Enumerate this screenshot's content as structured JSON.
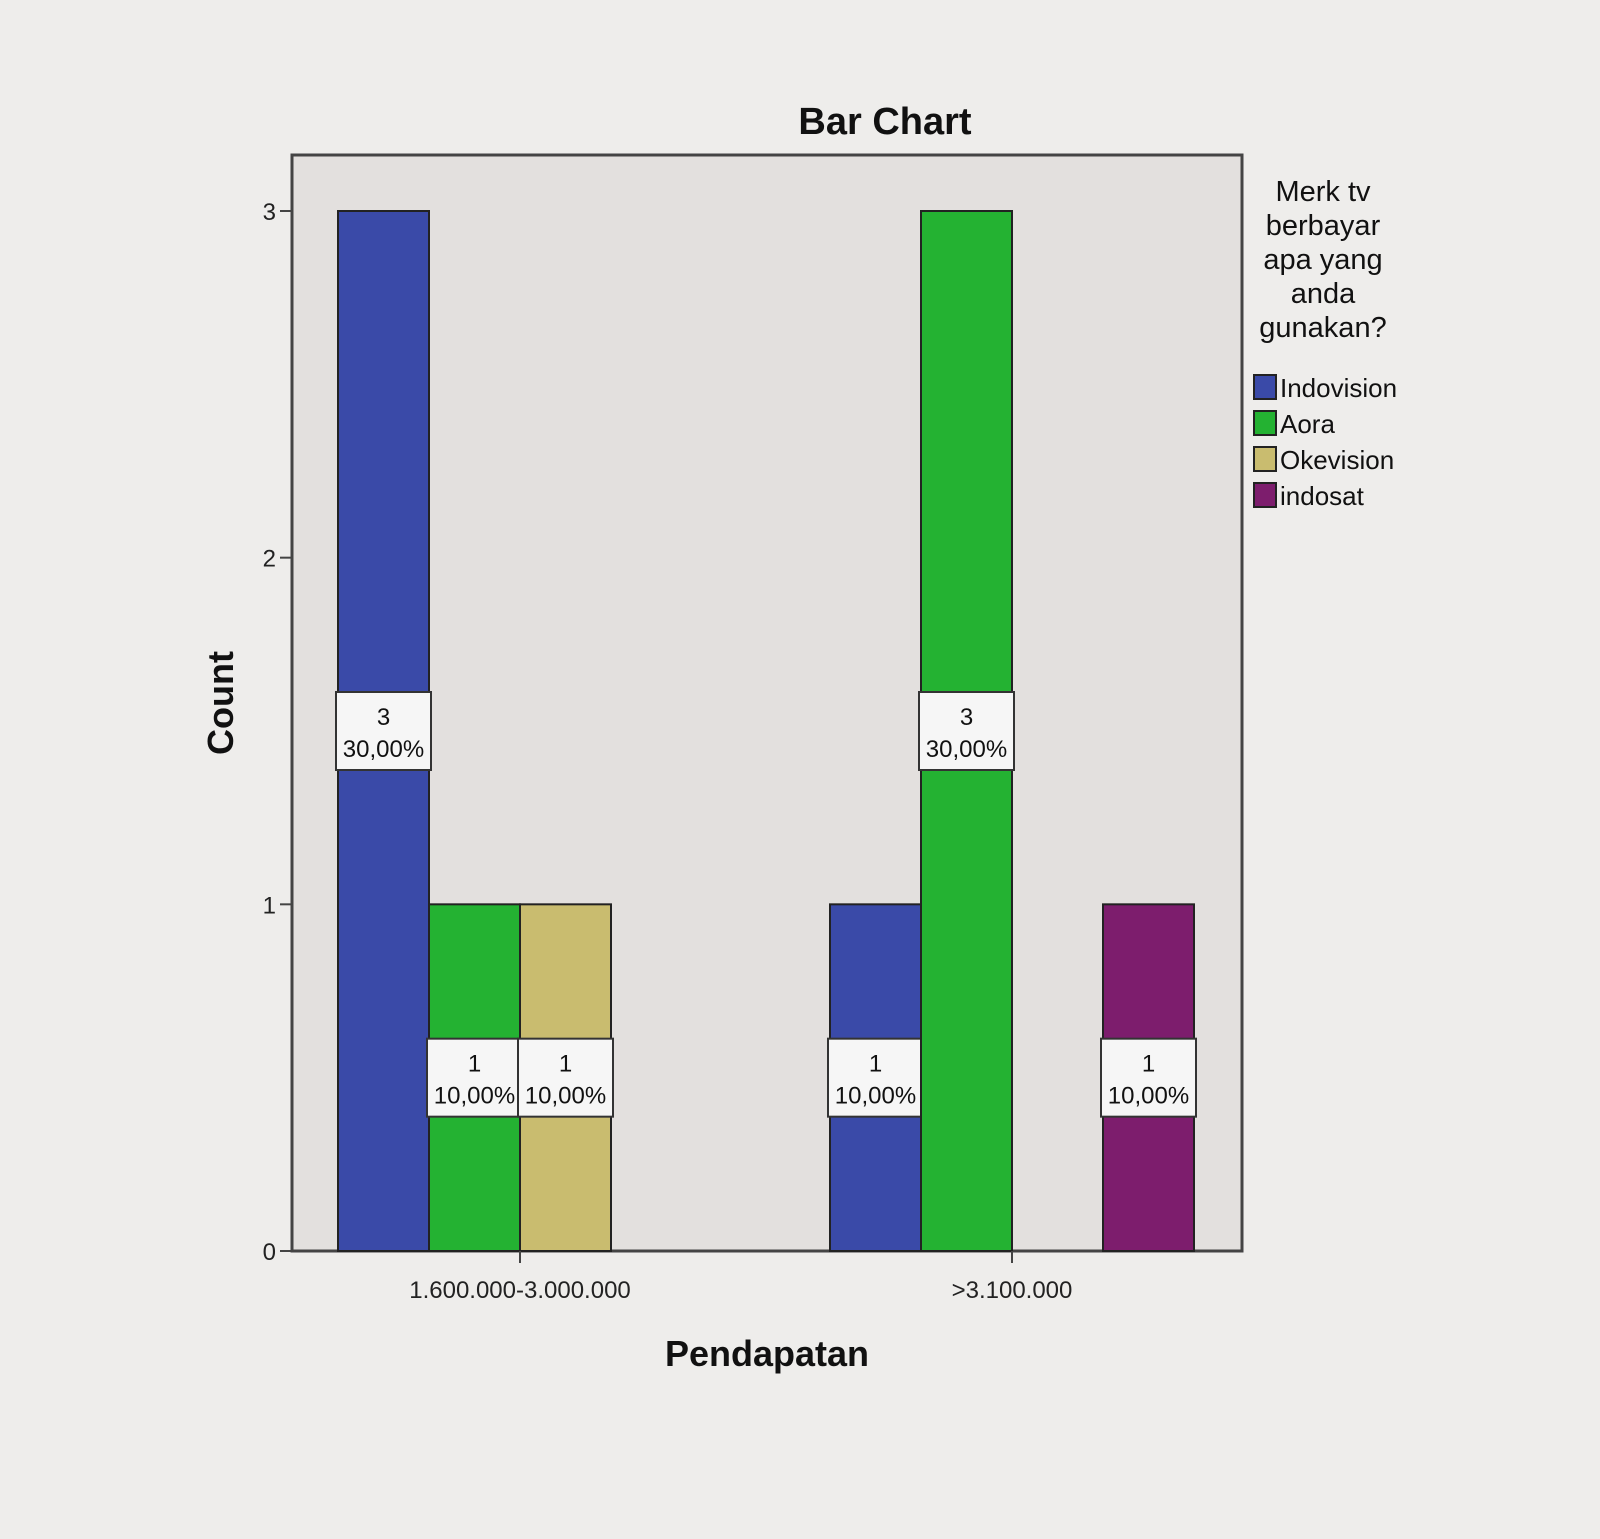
{
  "chart_data": {
    "type": "bar",
    "title": "Bar Chart",
    "xlabel": "Pendapatan",
    "ylabel": "Count",
    "ylim": [
      0,
      3
    ],
    "yticks": [
      "0",
      "1",
      "2",
      "3"
    ],
    "categories": [
      "1.600.000-3.000.000",
      ">3.100.000"
    ],
    "legend": {
      "title_lines": [
        "Merk tv",
        "berbayar",
        "apa yang",
        "anda",
        "gunakan?"
      ],
      "placement": "right"
    },
    "series": [
      {
        "name": "Indovision",
        "color": "#3a4aa8",
        "values": [
          3,
          1
        ],
        "labels": [
          [
            "3",
            "30,00%"
          ],
          [
            "1",
            "10,00%"
          ]
        ]
      },
      {
        "name": "Aora",
        "color": "#24b232",
        "values": [
          1,
          3
        ],
        "labels": [
          [
            "1",
            "10,00%"
          ],
          [
            "3",
            "30,00%"
          ]
        ]
      },
      {
        "name": "Okevision",
        "color": "#c9bc6f",
        "values": [
          1,
          0
        ],
        "labels": [
          [
            "1",
            "10,00%"
          ],
          null
        ]
      },
      {
        "name": "indosat",
        "color": "#7d1d6d",
        "values": [
          0,
          1
        ],
        "labels": [
          null,
          [
            "1",
            "10,00%"
          ]
        ]
      }
    ],
    "grid": false
  }
}
